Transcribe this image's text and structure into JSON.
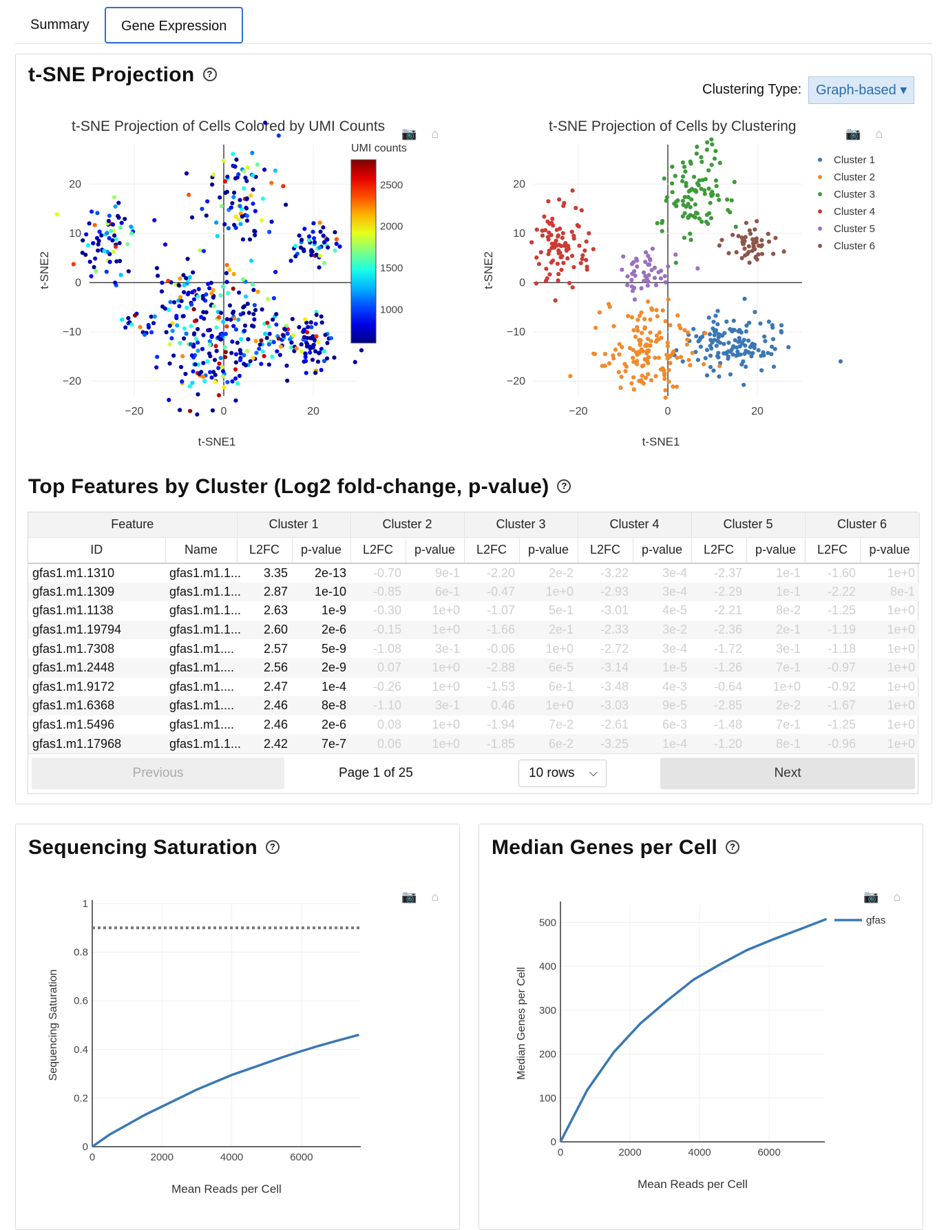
{
  "tabs": [
    {
      "label": "Summary"
    },
    {
      "label": "Gene Expression"
    }
  ],
  "tsne": {
    "title": "t-SNE Projection",
    "help": "?",
    "clustering_label": "Clustering Type:",
    "clustering_value": "Graph-based ▾",
    "plot1_title": "t-SNE Projection of Cells Colored by UMI Counts",
    "plot2_title": "t-SNE Projection of Cells by Clustering",
    "modebar": "📷 ⌂"
  },
  "chart_data": [
    {
      "type": "scatter",
      "title": "t-SNE Projection of Cells Colored by UMI Counts",
      "xlabel": "t-SNE1",
      "ylabel": "t-SNE2",
      "xticks": [
        "−20",
        "0",
        "20"
      ],
      "yticks": [
        "20",
        "10",
        "0",
        "−10",
        "−20"
      ],
      "xlim": [
        -30,
        30
      ],
      "ylim": [
        -23,
        28
      ],
      "colorbar": {
        "title": "UMI counts",
        "ticks": [
          "2500",
          "2000",
          "1500",
          "1000"
        ],
        "range": [
          600,
          2800
        ]
      },
      "clusters": [
        {
          "center": [
            -25,
            8
          ],
          "spread": [
            3,
            4
          ],
          "n": 70
        },
        {
          "center": [
            4,
            17
          ],
          "spread": [
            5,
            6
          ],
          "n": 90
        },
        {
          "center": [
            20,
            8
          ],
          "spread": [
            3,
            2
          ],
          "n": 50
        },
        {
          "center": [
            -8,
            -5
          ],
          "spread": [
            4,
            5
          ],
          "n": 80
        },
        {
          "center": [
            2,
            -8
          ],
          "spread": [
            5,
            5
          ],
          "n": 90
        },
        {
          "center": [
            16,
            -12
          ],
          "spread": [
            6,
            3
          ],
          "n": 110
        },
        {
          "center": [
            -5,
            -16
          ],
          "spread": [
            5,
            4
          ],
          "n": 80
        },
        {
          "center": [
            -19,
            -9
          ],
          "spread": [
            1.5,
            1.5
          ],
          "n": 15
        }
      ]
    },
    {
      "type": "scatter",
      "title": "t-SNE Projection of Cells by Clustering",
      "xlabel": "t-SNE1",
      "ylabel": "t-SNE2",
      "xticks": [
        "−20",
        "0",
        "20"
      ],
      "yticks": [
        "20",
        "10",
        "0",
        "−10",
        "−20"
      ],
      "xlim": [
        -30,
        30
      ],
      "ylim": [
        -23,
        28
      ],
      "series": [
        {
          "name": "Cluster 1",
          "color": "#3a78b4",
          "center": [
            14,
            -12
          ],
          "spread": [
            6,
            3
          ],
          "n": 130
        },
        {
          "name": "Cluster 2",
          "color": "#f08a2c",
          "center": [
            -4,
            -13
          ],
          "spread": [
            5,
            5
          ],
          "n": 140
        },
        {
          "name": "Cluster 3",
          "color": "#3e9a3a",
          "center": [
            6,
            18
          ],
          "spread": [
            4,
            5
          ],
          "n": 100
        },
        {
          "name": "Cluster 4",
          "color": "#cc3b34",
          "center": [
            -24,
            7
          ],
          "spread": [
            3,
            4
          ],
          "n": 90
        },
        {
          "name": "Cluster 5",
          "color": "#9a6fc0",
          "center": [
            -5,
            2
          ],
          "spread": [
            3,
            3
          ],
          "n": 45
        },
        {
          "name": "Cluster 6",
          "color": "#8c564b",
          "center": [
            19,
            8
          ],
          "spread": [
            3,
            2
          ],
          "n": 50
        }
      ]
    },
    {
      "type": "line",
      "title": "Sequencing Saturation",
      "xlabel": "Mean Reads per Cell",
      "ylabel": "Sequencing Saturation",
      "xticks": [
        "0",
        "2000",
        "4000",
        "6000"
      ],
      "yticks": [
        "0",
        "0.2",
        "0.4",
        "0.6",
        "0.8",
        "1"
      ],
      "xlim": [
        0,
        7700
      ],
      "ylim": [
        0,
        1
      ],
      "reference_line": 0.9,
      "x": [
        0,
        500,
        1000,
        1500,
        2000,
        2500,
        3000,
        3500,
        4000,
        4500,
        5000,
        5500,
        6000,
        6500,
        7000,
        7650
      ],
      "y": [
        0,
        0.05,
        0.09,
        0.13,
        0.165,
        0.2,
        0.235,
        0.265,
        0.295,
        0.32,
        0.345,
        0.37,
        0.393,
        0.415,
        0.435,
        0.46
      ]
    },
    {
      "type": "line",
      "title": "Median Genes per Cell",
      "xlabel": "Mean Reads per Cell",
      "ylabel": "Median Genes per Cell",
      "xticks": [
        "0",
        "2000",
        "4000",
        "6000"
      ],
      "yticks": [
        "0",
        "100",
        "200",
        "300",
        "400",
        "500"
      ],
      "xlim": [
        0,
        7600
      ],
      "ylim": [
        0,
        540
      ],
      "series": [
        {
          "name": "gfas",
          "color": "#3a78b4"
        }
      ],
      "x": [
        0,
        770,
        1540,
        2300,
        3070,
        3830,
        4600,
        5360,
        6130,
        6900,
        7650
      ],
      "y": [
        0,
        118,
        205,
        270,
        322,
        370,
        405,
        437,
        462,
        485,
        508
      ]
    }
  ],
  "features": {
    "title": "Top Features by Cluster (Log2 fold-change, p-value)",
    "help": "?",
    "group_headers": [
      "Feature",
      "Cluster 1",
      "Cluster 2",
      "Cluster 3",
      "Cluster 4",
      "Cluster 5",
      "Cluster 6"
    ],
    "sub_headers": [
      "ID",
      "Name",
      "L2FC",
      "p-value",
      "L2FC",
      "p-value",
      "L2FC",
      "p-value",
      "L2FC",
      "p-value",
      "L2FC",
      "p-value",
      "L2FC",
      "p-value"
    ],
    "rows": [
      [
        "gfas1.m1.1310",
        "gfas1.m1.1...",
        "3.35",
        "2e-13",
        "-0.70",
        "9e-1",
        "-2.20",
        "2e-2",
        "-3.22",
        "3e-4",
        "-2.37",
        "1e-1",
        "-1.60",
        "1e+0"
      ],
      [
        "gfas1.m1.1309",
        "gfas1.m1.1...",
        "2.87",
        "1e-10",
        "-0.85",
        "6e-1",
        "-0.47",
        "1e+0",
        "-2.93",
        "3e-4",
        "-2.29",
        "1e-1",
        "-2.22",
        "8e-1"
      ],
      [
        "gfas1.m1.1138",
        "gfas1.m1.1...",
        "2.63",
        "1e-9",
        "-0.30",
        "1e+0",
        "-1.07",
        "5e-1",
        "-3.01",
        "4e-5",
        "-2.21",
        "8e-2",
        "-1.25",
        "1e+0"
      ],
      [
        "gfas1.m1.19794",
        "gfas1.m1.1...",
        "2.60",
        "2e-6",
        "-0.15",
        "1e+0",
        "-1.66",
        "2e-1",
        "-2.33",
        "3e-2",
        "-2.36",
        "2e-1",
        "-1.19",
        "1e+0"
      ],
      [
        "gfas1.m1.7308",
        "gfas1.m1....",
        "2.57",
        "5e-9",
        "-1.08",
        "3e-1",
        "-0.06",
        "1e+0",
        "-2.72",
        "3e-4",
        "-1.72",
        "3e-1",
        "-1.18",
        "1e+0"
      ],
      [
        "gfas1.m1.2448",
        "gfas1.m1....",
        "2.56",
        "2e-9",
        "0.07",
        "1e+0",
        "-2.88",
        "6e-5",
        "-3.14",
        "1e-5",
        "-1.26",
        "7e-1",
        "-0.97",
        "1e+0"
      ],
      [
        "gfas1.m1.9172",
        "gfas1.m1....",
        "2.47",
        "1e-4",
        "-0.26",
        "1e+0",
        "-1.53",
        "6e-1",
        "-3.48",
        "4e-3",
        "-0.64",
        "1e+0",
        "-0.92",
        "1e+0"
      ],
      [
        "gfas1.m1.6368",
        "gfas1.m1....",
        "2.46",
        "8e-8",
        "-1.10",
        "3e-1",
        "0.46",
        "1e+0",
        "-3.03",
        "9e-5",
        "-2.85",
        "2e-2",
        "-1.67",
        "1e+0"
      ],
      [
        "gfas1.m1.5496",
        "gfas1.m1....",
        "2.46",
        "2e-6",
        "0.08",
        "1e+0",
        "-1.94",
        "7e-2",
        "-2.61",
        "6e-3",
        "-1.48",
        "7e-1",
        "-1.25",
        "1e+0"
      ],
      [
        "gfas1.m1.17968",
        "gfas1.m1.1...",
        "2.42",
        "7e-7",
        "0.06",
        "1e+0",
        "-1.85",
        "6e-2",
        "-3.25",
        "1e-4",
        "-1.20",
        "8e-1",
        "-0.96",
        "1e+0"
      ]
    ],
    "pager": {
      "previous": "Previous",
      "page_info": "Page 1 of 25",
      "rows_select": "10 rows",
      "next": "Next"
    }
  },
  "saturation": {
    "title": "Sequencing Saturation",
    "help": "?"
  },
  "median_genes": {
    "title": "Median Genes per Cell",
    "help": "?"
  }
}
